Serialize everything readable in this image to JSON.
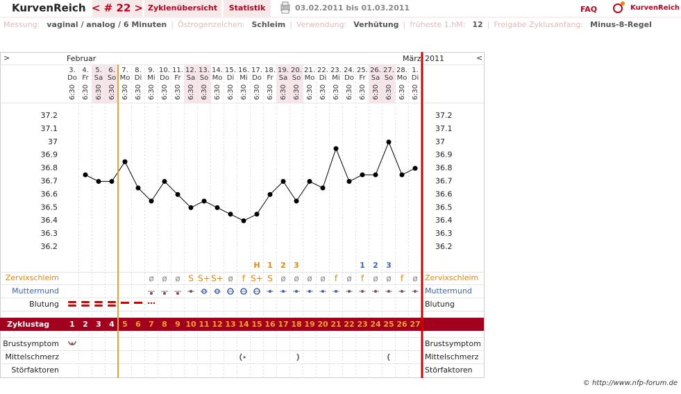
{
  "header": {
    "logo": "KurvenReich",
    "cycle_nav": "< # 22 >",
    "tabs": [
      "Zyklenübersicht",
      "Statistik"
    ],
    "date_range": "03.02.2011 bis 01.03.2011",
    "faq": "FAQ",
    "brand": "KurvenReich"
  },
  "info": {
    "separator": "|",
    "items": [
      {
        "label": "Messung:",
        "value": "vaginal / analog / 6 Minuten"
      },
      {
        "label": "Östrogenzeichen:",
        "value": "Schleim"
      },
      {
        "label": "Verwendung:",
        "value": "Verhütung"
      },
      {
        "label": "früheste 1.hM:",
        "value": "12"
      },
      {
        "label": "Freigabe Zyklusanfang:",
        "value": "Minus-8-Regel"
      }
    ]
  },
  "chart_data": {
    "type": "line",
    "nav_prev": ">",
    "nav_next": "<",
    "months": [
      "Februar",
      "März"
    ],
    "year": "2011",
    "categories": [
      "3.",
      "4.",
      "5.",
      "6.",
      "7.",
      "8.",
      "9.",
      "10.",
      "11.",
      "12.",
      "13.",
      "14.",
      "15.",
      "16.",
      "17.",
      "18.",
      "19.",
      "20.",
      "21.",
      "22.",
      "23.",
      "24.",
      "25.",
      "26.",
      "27.",
      "28.",
      "1."
    ],
    "weekdays": [
      "Do",
      "Fr",
      "Sa",
      "So",
      "Mo",
      "Di",
      "Mi",
      "Do",
      "Fr",
      "Sa",
      "So",
      "Mo",
      "Di",
      "Mi",
      "Do",
      "Fr",
      "Sa",
      "So",
      "Mo",
      "Di",
      "Mi",
      "Do",
      "Fr",
      "Sa",
      "So",
      "Mo",
      "Di"
    ],
    "times": [
      "6:30",
      "6:30",
      "6:30",
      "6:30",
      "6:30",
      "6:30",
      "6:30",
      "6:30",
      "6:30",
      "6:30",
      "6:30",
      "6:30",
      "6:30",
      "6:30",
      "6:30",
      "6:30",
      "6:30",
      "6:30",
      "6:30",
      "6:30",
      "6:30",
      "6:30",
      "6:30",
      "6:30",
      "6:30",
      "6:30",
      "6:30"
    ],
    "shaded_columns": [
      2,
      3,
      9,
      10,
      16,
      17,
      23,
      24
    ],
    "values": [
      null,
      36.75,
      36.7,
      36.7,
      36.85,
      36.65,
      36.55,
      36.7,
      36.6,
      36.5,
      36.55,
      36.5,
      36.45,
      36.4,
      36.45,
      36.6,
      36.7,
      36.55,
      36.7,
      36.65,
      36.95,
      36.7,
      36.75,
      36.75,
      37.0,
      36.75,
      36.8
    ],
    "color": "#000000",
    "ylim": [
      36.15,
      37.25
    ],
    "yticks": [
      36.2,
      36.3,
      36.4,
      36.5,
      36.6,
      36.7,
      36.8,
      36.9,
      37,
      37.1,
      37.2
    ],
    "mucus_count": [
      null,
      null,
      null,
      null,
      null,
      null,
      null,
      null,
      null,
      null,
      null,
      null,
      null,
      null,
      "H",
      "1",
      "2",
      "3",
      null,
      null,
      null,
      null,
      null,
      null,
      null,
      null,
      null
    ],
    "mucus_count_color": "#e8860a",
    "temp_count": [
      null,
      null,
      null,
      null,
      null,
      null,
      null,
      null,
      null,
      null,
      null,
      null,
      null,
      null,
      null,
      null,
      null,
      null,
      null,
      null,
      null,
      null,
      "1",
      "2",
      "3",
      null,
      null
    ],
    "temp_count_color": "#3a5fcd"
  },
  "rows": {
    "zervixschleim": {
      "label": "Zervixschleim",
      "color": "#e8860a",
      "symbols": [
        null,
        null,
        null,
        null,
        null,
        null,
        {
          "text": "ø",
          "color": "#888888"
        },
        {
          "text": "ø",
          "color": "#888888"
        },
        {
          "text": "ø",
          "color": "#888888"
        },
        {
          "text": "S",
          "color": "#e8860a"
        },
        {
          "text": "S+",
          "color": "#e8860a"
        },
        {
          "text": "S+",
          "color": "#e8860a"
        },
        {
          "text": "ø",
          "color": "#888888"
        },
        {
          "text": "f",
          "color": "#e8860a"
        },
        {
          "text": "S+",
          "color": "#e8860a"
        },
        {
          "text": "S",
          "color": "#e8860a"
        },
        {
          "text": "ø",
          "color": "#888888"
        },
        {
          "text": "ø",
          "color": "#888888"
        },
        {
          "text": "ø",
          "color": "#888888"
        },
        {
          "text": "ø",
          "color": "#888888"
        },
        {
          "text": "f",
          "color": "#e8860a"
        },
        {
          "text": "ø",
          "color": "#888888"
        },
        {
          "text": "f",
          "color": "#e8860a"
        },
        {
          "text": "ø",
          "color": "#888888"
        },
        {
          "text": "ø",
          "color": "#888888"
        },
        {
          "text": "f",
          "color": "#e8860a"
        },
        {
          "text": "ø",
          "color": "#888888"
        }
      ]
    },
    "muttermund": {
      "label": "Muttermund",
      "color": "#3a5fcd"
    },
    "blutung": {
      "label": "Blutung"
    },
    "zyklustag": {
      "label": "Zyklustag",
      "days": [
        1,
        2,
        3,
        4,
        5,
        6,
        7,
        8,
        9,
        10,
        11,
        12,
        13,
        14,
        15,
        16,
        17,
        18,
        19,
        20,
        21,
        22,
        23,
        24,
        25,
        26,
        27
      ]
    },
    "brustsymptom": {
      "label": "Brustsymptom"
    },
    "mittelschmerz": {
      "label": "Mittelschmerz"
    },
    "stoerfaktoren": {
      "label": "Störfaktoren"
    }
  },
  "footer": "© http://www.nfp-forum.de"
}
